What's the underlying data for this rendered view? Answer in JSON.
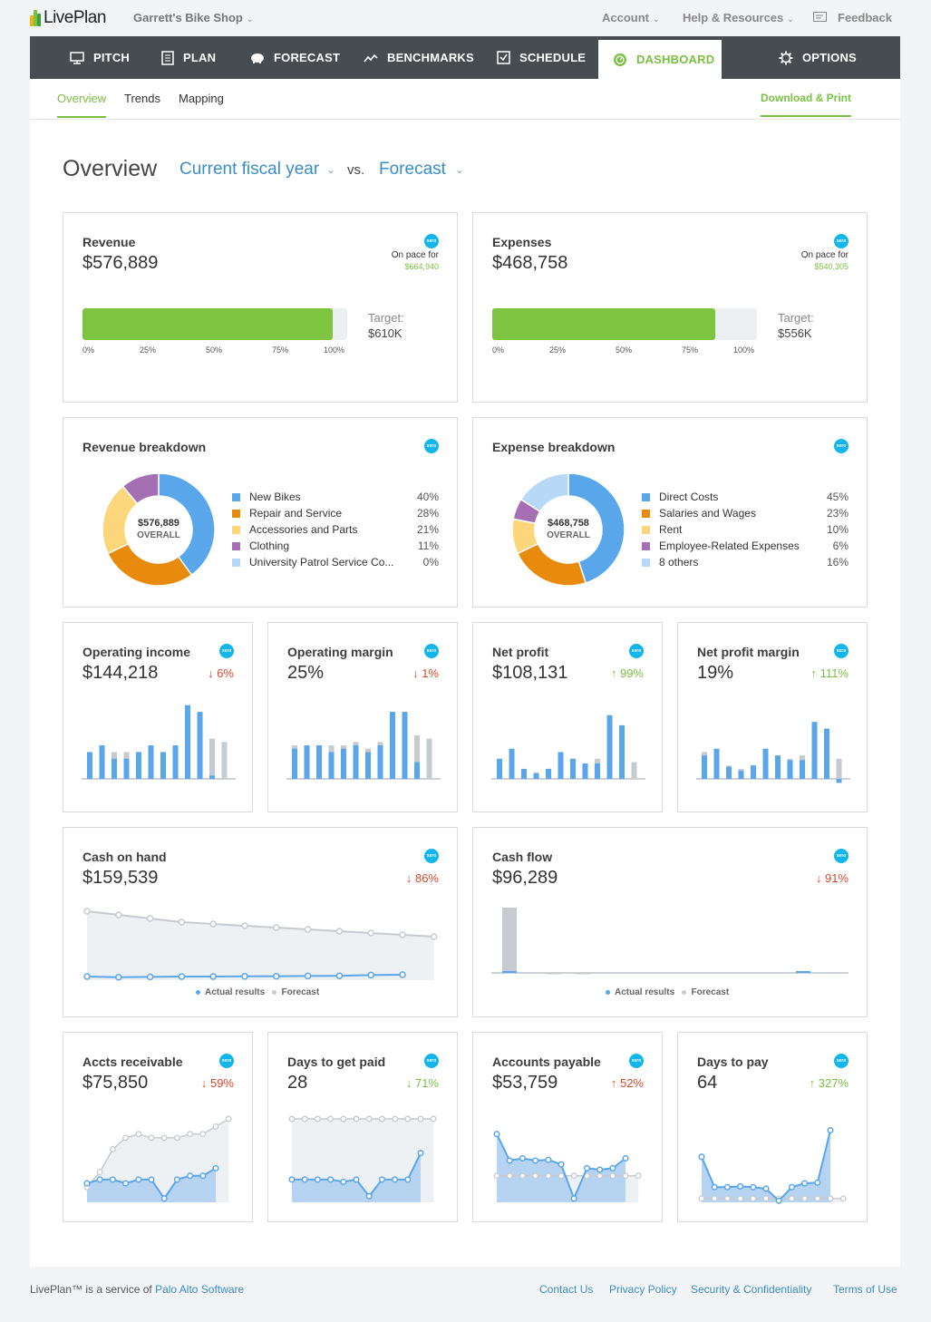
{
  "app": {
    "logo_text": "LivePlan",
    "shop_name": "Garrett's Bike Shop"
  },
  "topnav": {
    "account": "Account",
    "help": "Help & Resources",
    "feedback": "Feedback"
  },
  "nav": {
    "items": [
      "PITCH",
      "PLAN",
      "FORECAST",
      "BENCHMARKS",
      "SCHEDULE",
      "DASHBOARD",
      "OPTIONS"
    ]
  },
  "subnav": {
    "tabs": [
      "Overview",
      "Trends",
      "Mapping"
    ],
    "download": "Download & Print"
  },
  "overview": {
    "title": "Overview",
    "period": "Current fiscal year",
    "vs": "vs.",
    "compare": "Forecast"
  },
  "colors": {
    "accent": "#7ac143",
    "blue": "#5aa6ea",
    "grey": "#c5cbd1",
    "nav": "#474c51",
    "xero": "#13b5ea"
  },
  "xero_label": "xero",
  "revenue": {
    "title": "Revenue",
    "value": "$576,889",
    "onpace_label": "On pace for",
    "onpace_value": "$664,940",
    "target_label": "Target:",
    "target_value": "$610K",
    "progress": 0.946,
    "ticks": [
      "0%",
      "25%",
      "50%",
      "75%",
      "100%"
    ]
  },
  "expenses": {
    "title": "Expenses",
    "value": "$468,758",
    "onpace_label": "On pace for",
    "onpace_value": "$540,305",
    "target_label": "Target:",
    "target_value": "$556K",
    "progress": 0.843,
    "ticks": [
      "0%",
      "25%",
      "50%",
      "75%",
      "100%"
    ]
  },
  "revenue_breakdown": {
    "title": "Revenue breakdown",
    "center_value": "$576,889",
    "center_label": "OVERALL",
    "items": [
      {
        "label": "New Bikes",
        "pct": "40%",
        "value": 40,
        "color": "#5aa6ea"
      },
      {
        "label": "Repair and Service",
        "pct": "28%",
        "value": 28,
        "color": "#e88b0c"
      },
      {
        "label": "Accessories and Parts",
        "pct": "21%",
        "value": 21,
        "color": "#fbd67a"
      },
      {
        "label": "Clothing",
        "pct": "11%",
        "value": 11,
        "color": "#a56fb4"
      },
      {
        "label": "University Patrol Service Co...",
        "pct": "0%",
        "value": 0,
        "color": "#b8d8f7"
      }
    ]
  },
  "expense_breakdown": {
    "title": "Expense breakdown",
    "center_value": "$468,758",
    "center_label": "OVERALL",
    "items": [
      {
        "label": "Direct Costs",
        "pct": "45%",
        "value": 45,
        "color": "#5aa6ea"
      },
      {
        "label": "Salaries and Wages",
        "pct": "23%",
        "value": 23,
        "color": "#e88b0c"
      },
      {
        "label": "Rent",
        "pct": "10%",
        "value": 10,
        "color": "#fbd67a"
      },
      {
        "label": "Employee-Related Expenses",
        "pct": "6%",
        "value": 6,
        "color": "#a56fb4"
      },
      {
        "label": "8 others",
        "pct": "16%",
        "value": 16,
        "color": "#b8d8f7"
      }
    ]
  },
  "metrics": [
    {
      "title": "Operating income",
      "value": "$144,218",
      "change": "6%",
      "dir": "down"
    },
    {
      "title": "Operating margin",
      "value": "25%",
      "change": "1%",
      "dir": "down"
    },
    {
      "title": "Net profit",
      "value": "$108,131",
      "change": "99%",
      "dir": "up"
    },
    {
      "title": "Net profit margin",
      "value": "19%",
      "change": "111%",
      "dir": "up"
    }
  ],
  "cash": [
    {
      "title": "Cash on hand",
      "value": "$159,539",
      "change": "86%",
      "dir": "down"
    },
    {
      "title": "Cash flow",
      "value": "$96,289",
      "change": "91%",
      "dir": "down"
    }
  ],
  "legend": {
    "actual": "Actual results",
    "forecast": "Forecast"
  },
  "ops": [
    {
      "title": "Accts receivable",
      "value": "$75,850",
      "change": "59%",
      "dir": "down"
    },
    {
      "title": "Days to get paid",
      "value": "28",
      "change": "71%",
      "dir": "down"
    },
    {
      "title": "Accounts payable",
      "value": "$53,759",
      "change": "52%",
      "dir": "up"
    },
    {
      "title": "Days to pay",
      "value": "64",
      "change": "327%",
      "dir": "up"
    }
  ],
  "chart_data": [
    {
      "type": "bar",
      "title": "Operating income",
      "series": [
        {
          "name": "Actual results",
          "values": [
            4,
            5,
            3,
            3,
            4,
            5,
            4,
            5,
            11,
            10,
            0.5,
            0
          ]
        },
        {
          "name": "Forecast",
          "values": [
            4,
            5,
            4,
            4,
            4,
            5,
            4,
            5,
            5,
            7,
            6,
            5.5
          ]
        }
      ]
    },
    {
      "type": "bar",
      "title": "Operating margin",
      "series": [
        {
          "name": "Actual results",
          "values": [
            4.5,
            5,
            5,
            4,
            4.5,
            5,
            4,
            5,
            10,
            10,
            2.5,
            0
          ]
        },
        {
          "name": "Forecast",
          "values": [
            5,
            5,
            5,
            5,
            5,
            5.5,
            4.5,
            5.5,
            5.5,
            7.5,
            6.5,
            6
          ]
        }
      ]
    },
    {
      "type": "bar",
      "title": "Net profit",
      "series": [
        {
          "name": "Actual results",
          "values": [
            3,
            4.5,
            1.5,
            0.8,
            1.5,
            4,
            3,
            2.3,
            2.3,
            9.5,
            8,
            0
          ]
        },
        {
          "name": "Forecast",
          "values": [
            2,
            2,
            1,
            1,
            1.2,
            2,
            2,
            2,
            3,
            4,
            3.5,
            2.5
          ]
        }
      ]
    },
    {
      "type": "bar",
      "title": "Net profit margin",
      "series": [
        {
          "name": "Actual results",
          "values": [
            3.5,
            4.5,
            1.8,
            1.2,
            2,
            4.5,
            3.5,
            2.8,
            2.8,
            8.5,
            7.5,
            -0.6
          ]
        },
        {
          "name": "Forecast",
          "values": [
            4,
            3,
            2,
            1.5,
            2,
            3,
            3,
            3,
            3.5,
            5,
            3.5,
            3
          ]
        }
      ]
    },
    {
      "type": "line",
      "title": "Cash on hand",
      "series": [
        {
          "name": "Forecast",
          "values": [
            19,
            18,
            17,
            16,
            15.5,
            15,
            14.5,
            14,
            13.5,
            13,
            12.5,
            12
          ]
        },
        {
          "name": "Actual results",
          "values": [
            1,
            0.8,
            0.9,
            1,
            1,
            1.05,
            1.1,
            1.15,
            1.2,
            1.4,
            1.5
          ]
        }
      ]
    },
    {
      "type": "bar",
      "title": "Cash flow",
      "series": [
        {
          "name": "Forecast",
          "values": [
            72,
            0,
            0,
            -1,
            0,
            -1,
            0,
            0,
            0,
            0,
            0,
            0,
            0,
            0,
            0,
            0,
            0,
            0,
            0,
            0,
            0,
            0
          ]
        },
        {
          "name": "Actual results",
          "values": [
            1,
            0,
            0,
            0,
            0,
            0,
            0,
            0,
            0,
            0,
            0,
            0,
            0,
            0,
            0,
            0,
            0,
            0,
            0,
            0,
            1,
            0
          ]
        }
      ]
    },
    {
      "type": "area",
      "title": "Accts receivable",
      "series": [
        {
          "name": "Forecast",
          "values": [
            2,
            4,
            7,
            8.5,
            9,
            8.5,
            8.5,
            8.5,
            9,
            9,
            10,
            11
          ]
        },
        {
          "name": "Actual results",
          "values": [
            2.5,
            3,
            3,
            2.5,
            3,
            3,
            0.5,
            3,
            3.5,
            3.5,
            4.5
          ]
        }
      ]
    },
    {
      "type": "area",
      "title": "Days to get paid",
      "series": [
        {
          "name": "Forecast",
          "values": [
            11,
            11,
            11,
            11,
            11,
            11,
            11,
            11,
            11,
            11,
            11,
            11
          ]
        },
        {
          "name": "Actual results",
          "values": [
            3,
            3,
            3,
            3,
            2.7,
            3,
            0.8,
            3,
            3,
            3,
            6.5
          ]
        }
      ]
    },
    {
      "type": "area",
      "title": "Accounts payable",
      "series": [
        {
          "name": "Forecast",
          "values": [
            3.5,
            3.5,
            3.5,
            3.5,
            3.5,
            3.5,
            3.5,
            3.5,
            3.5,
            3.5,
            3.5,
            3.5
          ]
        },
        {
          "name": "Actual results",
          "values": [
            9,
            5.5,
            5.8,
            5.5,
            5.6,
            5,
            0.5,
            4.5,
            4.3,
            4.5,
            5.8
          ]
        }
      ]
    },
    {
      "type": "area",
      "title": "Days to pay",
      "series": [
        {
          "name": "Forecast",
          "values": [
            0.5,
            0.5,
            0.5,
            0.5,
            0.5,
            0.5,
            0.5,
            0.5,
            0.5,
            0.5,
            0.5,
            0.5
          ]
        },
        {
          "name": "Actual results",
          "values": [
            6,
            2,
            2,
            2.1,
            2,
            1.8,
            0.2,
            2,
            2.5,
            2.6,
            9.5
          ]
        }
      ]
    }
  ],
  "footer": {
    "text": "LivePlan™ is a service of",
    "company": "Palo Alto Software",
    "links": [
      "Contact Us",
      "Privacy Policy",
      "Security & Confidentiality",
      "Terms of Use"
    ]
  }
}
